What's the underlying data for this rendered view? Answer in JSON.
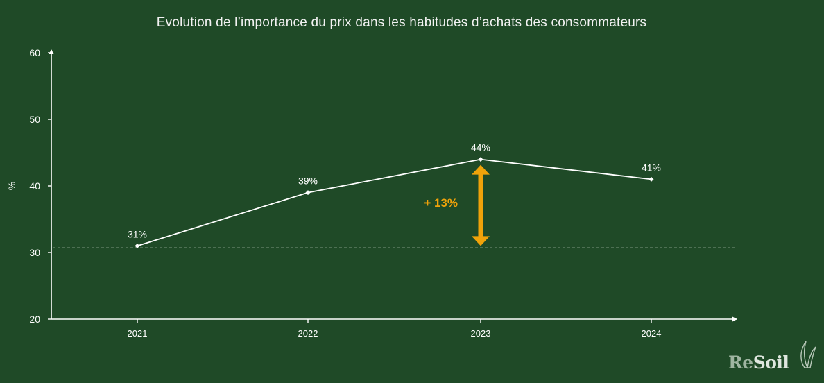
{
  "chart_data": {
    "type": "line",
    "title": "Evolution de l’importance du prix dans les habitudes d’achats des consommateurs",
    "ylabel": "%",
    "xlabel": "",
    "categories": [
      "2021",
      "2022",
      "2023",
      "2024"
    ],
    "values": [
      31,
      39,
      44,
      41
    ],
    "data_labels": [
      "31%",
      "39%",
      "44%",
      "41%"
    ],
    "ylim": [
      20,
      60
    ],
    "yticks": [
      20,
      30,
      40,
      50,
      60
    ],
    "reference_line": {
      "value": 30.7,
      "style": "dashed"
    },
    "annotation": {
      "text": "+ 13%",
      "from": 31,
      "to": 44,
      "at_category": "2023",
      "color": "#f0a30a"
    },
    "grid": false,
    "line_color": "#ffffff"
  },
  "brand": {
    "re": "Re",
    "soil": "Soil"
  },
  "colors": {
    "background": "#1f4a27",
    "accent": "#f0a30a",
    "text": "#ffffff"
  }
}
